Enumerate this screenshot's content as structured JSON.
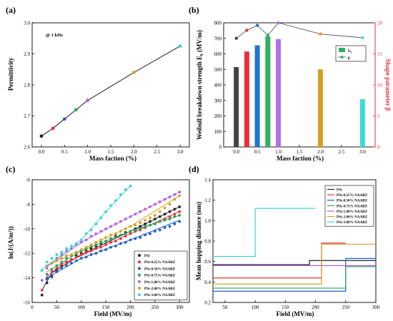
{
  "figure": {
    "panels": [
      "(a)",
      "(b)",
      "(c)",
      "(d)"
    ]
  },
  "chart_data": [
    {
      "panel": "(a)",
      "type": "line",
      "xlabel": "Mass faction (%)",
      "ylabel": "Permittivity",
      "annotation": "@ 1 kHz",
      "xlim": [
        -0.2,
        3.2
      ],
      "ylim": [
        2.6,
        3.0
      ],
      "xticks": [
        "0.0",
        "0.5",
        "1.0",
        "1.5",
        "2.0",
        "2.5",
        "3.0"
      ],
      "yticks": [
        "2.6",
        "2.7",
        "2.8",
        "2.9",
        "3.0"
      ],
      "x": [
        0,
        0.25,
        0.5,
        0.75,
        1.0,
        2.0,
        3.0
      ],
      "y": [
        2.635,
        2.66,
        2.69,
        2.72,
        2.75,
        2.84,
        2.925
      ],
      "point_colors": [
        "#222222",
        "#e8303a",
        "#2060c8",
        "#30a060",
        "#b060e0",
        "#d4a020",
        "#40d0d0"
      ],
      "line_color": "#000000",
      "grid": false
    },
    {
      "panel": "(b)",
      "type": "bar",
      "xlabel": "Mass faction (%)",
      "ylabel": "Weibull breakdown strength E₀ (MV/m)",
      "y2label": "Shape parameter β",
      "xlim": [
        -0.3,
        3.3
      ],
      "ylim": [
        0,
        800
      ],
      "y2lim": [
        0,
        20
      ],
      "xticks": [
        "0.0",
        "0.5",
        "1.0",
        "1.5",
        "2.0",
        "2.5",
        "3.0"
      ],
      "yticks": [
        "0",
        "100",
        "200",
        "300",
        "400",
        "500",
        "600",
        "700",
        "800"
      ],
      "y2ticks": [
        "0",
        "5",
        "10",
        "15",
        "20"
      ],
      "categories": [
        0,
        0.25,
        0.5,
        0.75,
        1.0,
        2.0,
        3.0
      ],
      "values": [
        515,
        615,
        655,
        712,
        695,
        500,
        308
      ],
      "bar_colors": [
        "#444444",
        "#e8303a",
        "#2070d8",
        "#30b060",
        "#b070e8",
        "#d4a020",
        "#40d8d8"
      ],
      "beta": [
        17.5,
        18.8,
        19.6,
        18.0,
        20.0,
        18.2,
        17.6
      ],
      "beta_color": "#555555",
      "legend": [
        "E₀",
        "β"
      ],
      "legend_position": "top-right",
      "grid": false
    },
    {
      "panel": "(c)",
      "type": "scatter",
      "xlabel": "Field (MV/m)",
      "ylabel": "ln(J/(A/m²))",
      "xlim": [
        0,
        320
      ],
      "ylim": [
        -16,
        -6
      ],
      "xticks": [
        "0",
        "50",
        "100",
        "150",
        "200",
        "250",
        "300"
      ],
      "yticks": [
        "-16",
        "-14",
        "-12",
        "-10",
        "-8",
        "-6"
      ],
      "legend_position": "bottom-right",
      "grid": false,
      "series": [
        {
          "name": "PSt",
          "color": "#222222",
          "x": [
            20,
            30,
            40,
            50,
            60,
            70,
            80,
            90,
            100,
            110,
            120,
            130,
            140,
            150,
            160,
            170,
            180,
            190,
            200,
            210,
            220,
            230,
            240,
            250,
            260,
            270,
            280,
            290,
            300
          ],
          "y": [
            -15.4,
            -14.4,
            -13.9,
            -13.4,
            -13.0,
            -12.7,
            -12.5,
            -12.2,
            -12.0,
            -11.8,
            -11.6,
            -11.4,
            -11.2,
            -11.0,
            -10.8,
            -10.6,
            -10.5,
            -10.3,
            -10.2,
            -10.0,
            -9.8,
            -9.6,
            -9.4,
            -9.2,
            -9.0,
            -8.8,
            -8.6,
            -8.4,
            -8.2
          ],
          "fit": [
            [
              20,
              -15.0
            ],
            [
              40,
              -13.6
            ],
            [
              100,
              -12.1
            ],
            [
              200,
              -10.2
            ],
            [
              300,
              -8.2
            ]
          ]
        },
        {
          "name": "PSt-0.25% NAABZ",
          "color": "#e8303a",
          "x": [
            20,
            30,
            40,
            50,
            60,
            70,
            80,
            90,
            100,
            110,
            120,
            130,
            140,
            150,
            160,
            170,
            180,
            190,
            200,
            210,
            220,
            230,
            240,
            250,
            260,
            270,
            280,
            290,
            300
          ],
          "y": [
            -15.0,
            -14.0,
            -13.5,
            -13.2,
            -12.9,
            -12.7,
            -12.5,
            -12.3,
            -12.1,
            -11.9,
            -11.8,
            -11.6,
            -11.5,
            -11.3,
            -11.1,
            -11.0,
            -10.8,
            -10.6,
            -10.4,
            -10.2,
            -10.1,
            -9.9,
            -9.7,
            -9.6,
            -9.4,
            -9.2,
            -9.0,
            -8.8,
            -8.6
          ],
          "fit": [
            [
              30,
              -13.9
            ],
            [
              60,
              -12.9
            ],
            [
              150,
              -11.3
            ],
            [
              300,
              -8.6
            ]
          ]
        },
        {
          "name": "PSt-0.50% NAABZ",
          "color": "#2060c8",
          "x": [
            30,
            40,
            50,
            60,
            70,
            80,
            90,
            100,
            110,
            120,
            130,
            140,
            150,
            160,
            170,
            180,
            190,
            200,
            210,
            220,
            230,
            240,
            250,
            260,
            270,
            280,
            290,
            300
          ],
          "y": [
            -14.1,
            -13.8,
            -13.5,
            -13.2,
            -13.0,
            -12.8,
            -12.6,
            -12.4,
            -12.3,
            -12.1,
            -12.0,
            -11.8,
            -11.7,
            -11.5,
            -11.4,
            -11.2,
            -11.1,
            -10.9,
            -10.8,
            -10.7,
            -10.5,
            -10.4,
            -10.2,
            -10.1,
            -9.9,
            -9.8,
            -9.6,
            -9.4
          ],
          "fit": [
            [
              30,
              -14.0
            ],
            [
              100,
              -12.4
            ],
            [
              200,
              -10.9
            ],
            [
              300,
              -9.3
            ]
          ]
        },
        {
          "name": "PSt-0.75% NAABZ",
          "color": "#30a060",
          "x": [
            30,
            40,
            50,
            60,
            70,
            80,
            90,
            100,
            110,
            120,
            130,
            140,
            150,
            160,
            170,
            180,
            190,
            200,
            210,
            220,
            230,
            240,
            250,
            260,
            270,
            280,
            290,
            300
          ],
          "y": [
            -13.7,
            -13.3,
            -13.0,
            -12.7,
            -12.4,
            -12.2,
            -12.0,
            -11.8,
            -11.6,
            -11.4,
            -11.3,
            -11.1,
            -11.0,
            -10.8,
            -10.7,
            -10.5,
            -10.4,
            -10.2,
            -10.1,
            -10.0,
            -9.8,
            -9.7,
            -9.6,
            -9.4,
            -9.3,
            -9.2,
            -9.0,
            -8.9
          ],
          "fit": [
            [
              30,
              -13.5
            ],
            [
              100,
              -11.8
            ],
            [
              200,
              -10.2
            ],
            [
              300,
              -8.9
            ]
          ]
        },
        {
          "name": "PSt-1.00% NAABZ",
          "color": "#b060e0",
          "x": [
            20,
            30,
            40,
            50,
            60,
            70,
            80,
            90,
            100,
            110,
            120,
            130,
            140,
            150,
            160,
            170,
            180,
            190,
            200,
            210,
            220,
            230,
            240,
            250,
            260,
            270,
            280,
            290,
            300
          ],
          "y": [
            -14.2,
            -13.2,
            -12.8,
            -12.4,
            -12.1,
            -11.8,
            -11.6,
            -11.3,
            -11.1,
            -10.9,
            -10.6,
            -10.4,
            -10.2,
            -10.0,
            -9.8,
            -9.6,
            -9.4,
            -9.2,
            -9.0,
            -8.8,
            -8.6,
            -8.4,
            -8.2,
            -8.0,
            -7.8,
            -7.6,
            -7.4,
            -7.2,
            -7.0
          ],
          "fit": [
            [
              30,
              -13.1
            ],
            [
              100,
              -11.1
            ],
            [
              200,
              -9.0
            ],
            [
              300,
              -7.0
            ]
          ]
        },
        {
          "name": "PSt-2.00% NAABZ",
          "color": "#d4a020",
          "x": [
            30,
            40,
            50,
            60,
            70,
            80,
            90,
            100,
            110,
            120,
            130,
            140,
            150,
            160,
            170,
            180,
            190,
            200,
            210,
            220,
            230,
            240,
            250,
            260,
            270,
            280,
            290,
            300
          ],
          "y": [
            -13.0,
            -12.8,
            -12.6,
            -12.4,
            -12.2,
            -12.1,
            -11.9,
            -11.7,
            -11.5,
            -11.3,
            -11.1,
            -10.9,
            -10.7,
            -10.5,
            -10.4,
            -10.2,
            -10.0,
            -9.8,
            -9.7,
            -9.5,
            -9.3,
            -9.1,
            -8.9,
            -8.6,
            -8.3,
            -8.0,
            -7.6,
            -7.3
          ],
          "fit": [
            [
              30,
              -13.0
            ],
            [
              100,
              -11.7
            ],
            [
              200,
              -9.8
            ],
            [
              300,
              -7.3
            ]
          ]
        },
        {
          "name": "PSt-3.00% NAABZ",
          "color": "#40d0d0",
          "x": [
            20,
            30,
            40,
            50,
            60,
            70,
            80,
            90,
            100,
            110,
            120,
            130,
            140,
            150,
            160,
            170,
            180,
            190,
            200
          ],
          "y": [
            -13.4,
            -12.7,
            -12.4,
            -12.1,
            -11.9,
            -11.6,
            -11.4,
            -11.2,
            -10.9,
            -10.4,
            -10.1,
            -9.6,
            -9.1,
            -8.6,
            -8.1,
            -7.7,
            -7.2,
            -6.8,
            -6.5
          ],
          "fit": [
            [
              20,
              -13.3
            ],
            [
              100,
              -10.9
            ],
            [
              150,
              -8.6
            ],
            [
              200,
              -6.5
            ]
          ]
        }
      ]
    },
    {
      "panel": "(d)",
      "type": "line",
      "xlabel": "Field (MV/m)",
      "ylabel": "Mean hopping distance (nm)",
      "xlim": [
        30,
        300
      ],
      "ylim": [
        0.2,
        1.4
      ],
      "xticks": [
        "50",
        "100",
        "150",
        "200",
        "250",
        "300"
      ],
      "yticks": [
        "0.2",
        "0.4",
        "0.6",
        "0.8",
        "1.0",
        "1.2",
        "1.4"
      ],
      "legend_position": "top-left",
      "grid": false,
      "series": [
        {
          "name": "PSt",
          "color": "#222222",
          "steps": [
            [
              30,
              0.57
            ],
            [
              190,
              0.57
            ],
            [
              190,
              0.61
            ],
            [
              300,
              0.61
            ]
          ]
        },
        {
          "name": "PSt-0.25% NAABZ",
          "color": "#e8303a",
          "steps": [
            [
              30,
              0.44
            ],
            [
              210,
              0.44
            ],
            [
              210,
              0.78
            ],
            [
              250,
              0.78
            ]
          ]
        },
        {
          "name": "PSt-0.50% NAABZ",
          "color": "#2060c8",
          "steps": [
            [
              30,
              0.31
            ],
            [
              250,
              0.31
            ],
            [
              250,
              0.63
            ],
            [
              300,
              0.63
            ]
          ]
        },
        {
          "name": "PSt-0.75% NAABZ",
          "color": "#30a060",
          "steps": [
            [
              30,
              0.34
            ],
            [
              250,
              0.34
            ],
            [
              250,
              0.55
            ],
            [
              300,
              0.55
            ]
          ]
        },
        {
          "name": "PSt-1.00% NAABZ",
          "color": "#b060e0",
          "steps": [
            [
              30,
              0.56
            ],
            [
              300,
              0.56
            ]
          ]
        },
        {
          "name": "PSt-2.00% NAABZ",
          "color": "#d4a020",
          "steps": [
            [
              30,
              0.38
            ],
            [
              210,
              0.38
            ],
            [
              210,
              0.77
            ],
            [
              300,
              0.77
            ]
          ]
        },
        {
          "name": "PSt-3.00% NAABZ",
          "color": "#40d0d0",
          "steps": [
            [
              30,
              0.65
            ],
            [
              100,
              0.65
            ],
            [
              100,
              1.12
            ],
            [
              200,
              1.12
            ]
          ]
        }
      ]
    }
  ]
}
